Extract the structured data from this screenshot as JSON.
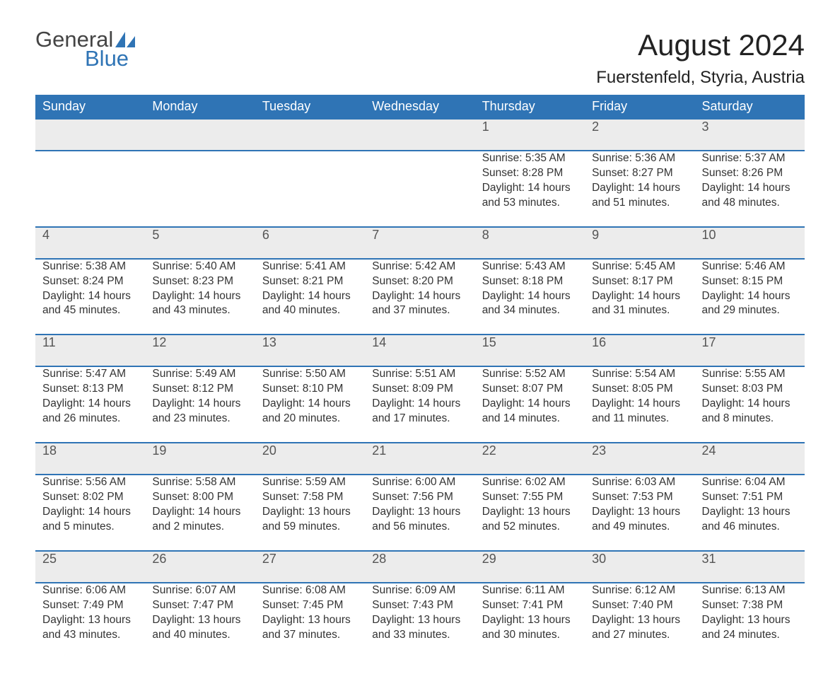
{
  "brand": {
    "word1": "General",
    "word2": "Blue",
    "accent_color": "#2f74b5"
  },
  "title": "August 2024",
  "location": "Fuerstenfeld, Styria, Austria",
  "colors": {
    "header_bg": "#2f74b5",
    "header_text": "#ffffff",
    "daynum_bg": "#ececec",
    "row_border": "#2f74b5",
    "body_text": "#333333",
    "page_bg": "#ffffff"
  },
  "weekdays": [
    "Sunday",
    "Monday",
    "Tuesday",
    "Wednesday",
    "Thursday",
    "Friday",
    "Saturday"
  ],
  "weeks": [
    [
      null,
      null,
      null,
      null,
      {
        "n": "1",
        "sr": "Sunrise: 5:35 AM",
        "ss": "Sunset: 8:28 PM",
        "d1": "Daylight: 14 hours",
        "d2": "and 53 minutes."
      },
      {
        "n": "2",
        "sr": "Sunrise: 5:36 AM",
        "ss": "Sunset: 8:27 PM",
        "d1": "Daylight: 14 hours",
        "d2": "and 51 minutes."
      },
      {
        "n": "3",
        "sr": "Sunrise: 5:37 AM",
        "ss": "Sunset: 8:26 PM",
        "d1": "Daylight: 14 hours",
        "d2": "and 48 minutes."
      }
    ],
    [
      {
        "n": "4",
        "sr": "Sunrise: 5:38 AM",
        "ss": "Sunset: 8:24 PM",
        "d1": "Daylight: 14 hours",
        "d2": "and 45 minutes."
      },
      {
        "n": "5",
        "sr": "Sunrise: 5:40 AM",
        "ss": "Sunset: 8:23 PM",
        "d1": "Daylight: 14 hours",
        "d2": "and 43 minutes."
      },
      {
        "n": "6",
        "sr": "Sunrise: 5:41 AM",
        "ss": "Sunset: 8:21 PM",
        "d1": "Daylight: 14 hours",
        "d2": "and 40 minutes."
      },
      {
        "n": "7",
        "sr": "Sunrise: 5:42 AM",
        "ss": "Sunset: 8:20 PM",
        "d1": "Daylight: 14 hours",
        "d2": "and 37 minutes."
      },
      {
        "n": "8",
        "sr": "Sunrise: 5:43 AM",
        "ss": "Sunset: 8:18 PM",
        "d1": "Daylight: 14 hours",
        "d2": "and 34 minutes."
      },
      {
        "n": "9",
        "sr": "Sunrise: 5:45 AM",
        "ss": "Sunset: 8:17 PM",
        "d1": "Daylight: 14 hours",
        "d2": "and 31 minutes."
      },
      {
        "n": "10",
        "sr": "Sunrise: 5:46 AM",
        "ss": "Sunset: 8:15 PM",
        "d1": "Daylight: 14 hours",
        "d2": "and 29 minutes."
      }
    ],
    [
      {
        "n": "11",
        "sr": "Sunrise: 5:47 AM",
        "ss": "Sunset: 8:13 PM",
        "d1": "Daylight: 14 hours",
        "d2": "and 26 minutes."
      },
      {
        "n": "12",
        "sr": "Sunrise: 5:49 AM",
        "ss": "Sunset: 8:12 PM",
        "d1": "Daylight: 14 hours",
        "d2": "and 23 minutes."
      },
      {
        "n": "13",
        "sr": "Sunrise: 5:50 AM",
        "ss": "Sunset: 8:10 PM",
        "d1": "Daylight: 14 hours",
        "d2": "and 20 minutes."
      },
      {
        "n": "14",
        "sr": "Sunrise: 5:51 AM",
        "ss": "Sunset: 8:09 PM",
        "d1": "Daylight: 14 hours",
        "d2": "and 17 minutes."
      },
      {
        "n": "15",
        "sr": "Sunrise: 5:52 AM",
        "ss": "Sunset: 8:07 PM",
        "d1": "Daylight: 14 hours",
        "d2": "and 14 minutes."
      },
      {
        "n": "16",
        "sr": "Sunrise: 5:54 AM",
        "ss": "Sunset: 8:05 PM",
        "d1": "Daylight: 14 hours",
        "d2": "and 11 minutes."
      },
      {
        "n": "17",
        "sr": "Sunrise: 5:55 AM",
        "ss": "Sunset: 8:03 PM",
        "d1": "Daylight: 14 hours",
        "d2": "and 8 minutes."
      }
    ],
    [
      {
        "n": "18",
        "sr": "Sunrise: 5:56 AM",
        "ss": "Sunset: 8:02 PM",
        "d1": "Daylight: 14 hours",
        "d2": "and 5 minutes."
      },
      {
        "n": "19",
        "sr": "Sunrise: 5:58 AM",
        "ss": "Sunset: 8:00 PM",
        "d1": "Daylight: 14 hours",
        "d2": "and 2 minutes."
      },
      {
        "n": "20",
        "sr": "Sunrise: 5:59 AM",
        "ss": "Sunset: 7:58 PM",
        "d1": "Daylight: 13 hours",
        "d2": "and 59 minutes."
      },
      {
        "n": "21",
        "sr": "Sunrise: 6:00 AM",
        "ss": "Sunset: 7:56 PM",
        "d1": "Daylight: 13 hours",
        "d2": "and 56 minutes."
      },
      {
        "n": "22",
        "sr": "Sunrise: 6:02 AM",
        "ss": "Sunset: 7:55 PM",
        "d1": "Daylight: 13 hours",
        "d2": "and 52 minutes."
      },
      {
        "n": "23",
        "sr": "Sunrise: 6:03 AM",
        "ss": "Sunset: 7:53 PM",
        "d1": "Daylight: 13 hours",
        "d2": "and 49 minutes."
      },
      {
        "n": "24",
        "sr": "Sunrise: 6:04 AM",
        "ss": "Sunset: 7:51 PM",
        "d1": "Daylight: 13 hours",
        "d2": "and 46 minutes."
      }
    ],
    [
      {
        "n": "25",
        "sr": "Sunrise: 6:06 AM",
        "ss": "Sunset: 7:49 PM",
        "d1": "Daylight: 13 hours",
        "d2": "and 43 minutes."
      },
      {
        "n": "26",
        "sr": "Sunrise: 6:07 AM",
        "ss": "Sunset: 7:47 PM",
        "d1": "Daylight: 13 hours",
        "d2": "and 40 minutes."
      },
      {
        "n": "27",
        "sr": "Sunrise: 6:08 AM",
        "ss": "Sunset: 7:45 PM",
        "d1": "Daylight: 13 hours",
        "d2": "and 37 minutes."
      },
      {
        "n": "28",
        "sr": "Sunrise: 6:09 AM",
        "ss": "Sunset: 7:43 PM",
        "d1": "Daylight: 13 hours",
        "d2": "and 33 minutes."
      },
      {
        "n": "29",
        "sr": "Sunrise: 6:11 AM",
        "ss": "Sunset: 7:41 PM",
        "d1": "Daylight: 13 hours",
        "d2": "and 30 minutes."
      },
      {
        "n": "30",
        "sr": "Sunrise: 6:12 AM",
        "ss": "Sunset: 7:40 PM",
        "d1": "Daylight: 13 hours",
        "d2": "and 27 minutes."
      },
      {
        "n": "31",
        "sr": "Sunrise: 6:13 AM",
        "ss": "Sunset: 7:38 PM",
        "d1": "Daylight: 13 hours",
        "d2": "and 24 minutes."
      }
    ]
  ]
}
